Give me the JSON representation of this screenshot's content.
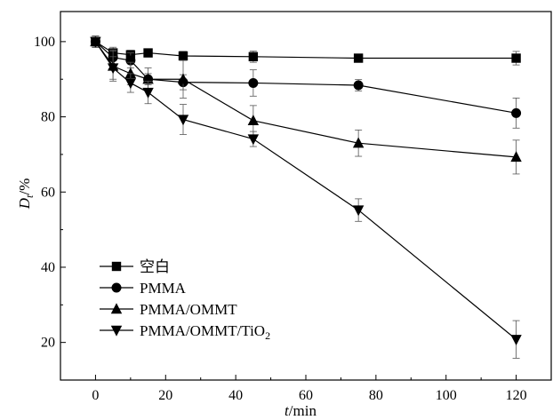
{
  "chart_data": {
    "type": "line",
    "title": "",
    "xlabel_italic": "t",
    "xlabel_rest": "/min",
    "ylabel_main": "D",
    "ylabel_sub": "t",
    "ylabel_rest": "/%",
    "xlim": [
      -10,
      130
    ],
    "ylim": [
      10,
      108
    ],
    "xticks": [
      0,
      20,
      40,
      60,
      80,
      100,
      120
    ],
    "yticks": [
      20,
      40,
      60,
      80,
      100
    ],
    "grid": false,
    "legend_position": "bottom-left",
    "x": [
      0,
      5,
      10,
      15,
      25,
      45,
      75,
      120
    ],
    "series": [
      {
        "name": "空白",
        "marker": "square",
        "values": [
          100,
          97,
          96.5,
          97,
          96.2,
          96,
          95.6,
          95.6
        ],
        "errors": [
          1.5,
          1.5,
          1.2,
          1,
          1.2,
          1.5,
          1,
          1.8
        ]
      },
      {
        "name": "PMMA",
        "marker": "circle",
        "values": [
          100,
          95.8,
          95,
          90,
          89.2,
          89,
          88.4,
          81
        ],
        "errors": [
          1.5,
          2,
          2,
          1.5,
          2,
          3.5,
          1.5,
          4
        ]
      },
      {
        "name": "PMMA/OMMT",
        "marker": "triangle-up",
        "values": [
          100,
          93.5,
          91.5,
          90,
          90,
          79,
          73,
          69.3
        ],
        "errors": [
          1.5,
          4,
          3,
          3,
          5,
          4,
          3.5,
          4.5
        ]
      },
      {
        "name_main": "PMMA/OMMT/TiO",
        "name_sub": "2",
        "marker": "triangle-down",
        "values": [
          100,
          93,
          89,
          86.5,
          79.3,
          74.1,
          55.2,
          20.8
        ],
        "errors": [
          1.5,
          3,
          2.5,
          3,
          4,
          2,
          3,
          5
        ]
      }
    ]
  }
}
